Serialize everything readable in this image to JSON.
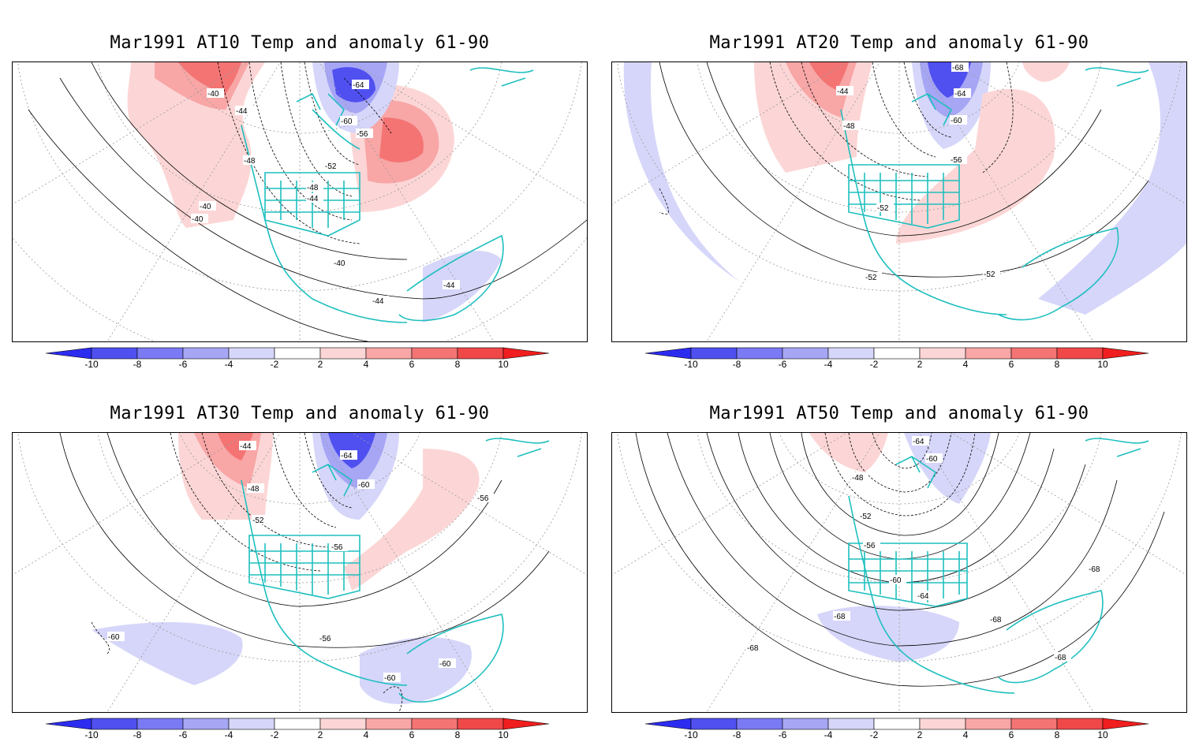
{
  "panels": [
    {
      "title": "Mar1991 AT10 Temp and anomaly 61-90",
      "contour_labels": [
        "-40",
        "-44",
        "-48",
        "-52",
        "-56",
        "-60",
        "-64",
        "-48",
        "-44",
        "-40",
        "-40",
        "-40",
        "-44",
        "-44"
      ]
    },
    {
      "title": "Mar1991 AT20 Temp and anomaly 61-90",
      "contour_labels": [
        "-68",
        "-64",
        "-44",
        "-48",
        "-60",
        "-56",
        "-52",
        "-52",
        "-52"
      ]
    },
    {
      "title": "Mar1991 AT30 Temp and anomaly 61-90",
      "contour_labels": [
        "-44",
        "-64",
        "-48",
        "-60",
        "-52",
        "-56",
        "-56",
        "-56",
        "-60",
        "-60",
        "-60"
      ]
    },
    {
      "title": "Mar1991 AT50 Temp and anomaly 61-90",
      "contour_labels": [
        "-64",
        "-60",
        "-48",
        "-52",
        "-56",
        "-60",
        "-64",
        "-68",
        "-68",
        "-68",
        "-68",
        "-68"
      ]
    }
  ],
  "colorbar": {
    "ticks": [
      "-10",
      "-8",
      "-6",
      "-4",
      "-2",
      "2",
      "4",
      "6",
      "8",
      "10"
    ],
    "colors": [
      "#2c2cf0",
      "#5050f0",
      "#7a7af5",
      "#a6a6f5",
      "#d6d6fa",
      "#ffffff",
      "#fcd6d6",
      "#f8a6a6",
      "#f47474",
      "#f04848",
      "#f01e1e"
    ]
  },
  "colors": {
    "coastline": "#1fbfbf",
    "contour": "#000000",
    "grid": "#9a9a9a"
  }
}
